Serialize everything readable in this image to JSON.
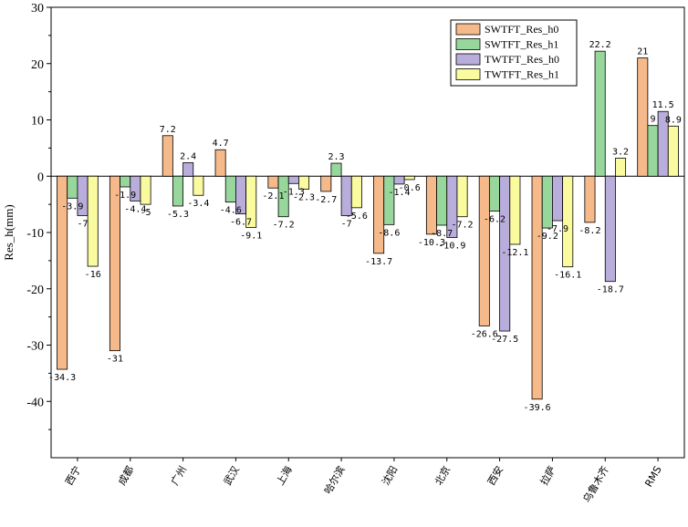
{
  "chart_data": {
    "type": "bar",
    "ylabel": "Res_h(mm)",
    "ylim": [
      -50,
      30
    ],
    "yticks": [
      30,
      20,
      10,
      0,
      -10,
      -20,
      -30,
      -40
    ],
    "categories": [
      "西宁",
      "成都",
      "广州",
      "武汉",
      "上海",
      "哈尔滨",
      "沈阳",
      "北京",
      "西安",
      "拉萨",
      "乌鲁木齐",
      "RMS"
    ],
    "series": [
      {
        "name": "SWTFT_Res_h0",
        "color": "#f5b98a",
        "values": [
          -34.3,
          -31,
          7.2,
          4.7,
          -2.1,
          -2.7,
          -13.7,
          -10.3,
          -26.6,
          -39.6,
          -8.2,
          21
        ]
      },
      {
        "name": "SWTFT_Res_h1",
        "color": "#98d79b",
        "values": [
          -3.9,
          -1.9,
          -5.3,
          -4.6,
          -7.2,
          2.3,
          -8.6,
          -8.7,
          -6.2,
          -9.2,
          22.2,
          9
        ]
      },
      {
        "name": "TWTFT_Res_h0",
        "color": "#b9addb",
        "values": [
          -7,
          -4.4,
          2.4,
          -6.7,
          -1.3,
          -7,
          -1.4,
          -10.9,
          -27.5,
          -7.9,
          -18.7,
          11.5
        ]
      },
      {
        "name": "TWTFT_Res_h1",
        "color": "#fafa9e",
        "values": [
          -16,
          -5,
          -3.4,
          -9.1,
          -2.3,
          -5.6,
          -0.6,
          -7.2,
          -12.1,
          -16.1,
          3.2,
          8.9
        ]
      }
    ],
    "legend_position": "top-right",
    "grid": false
  }
}
